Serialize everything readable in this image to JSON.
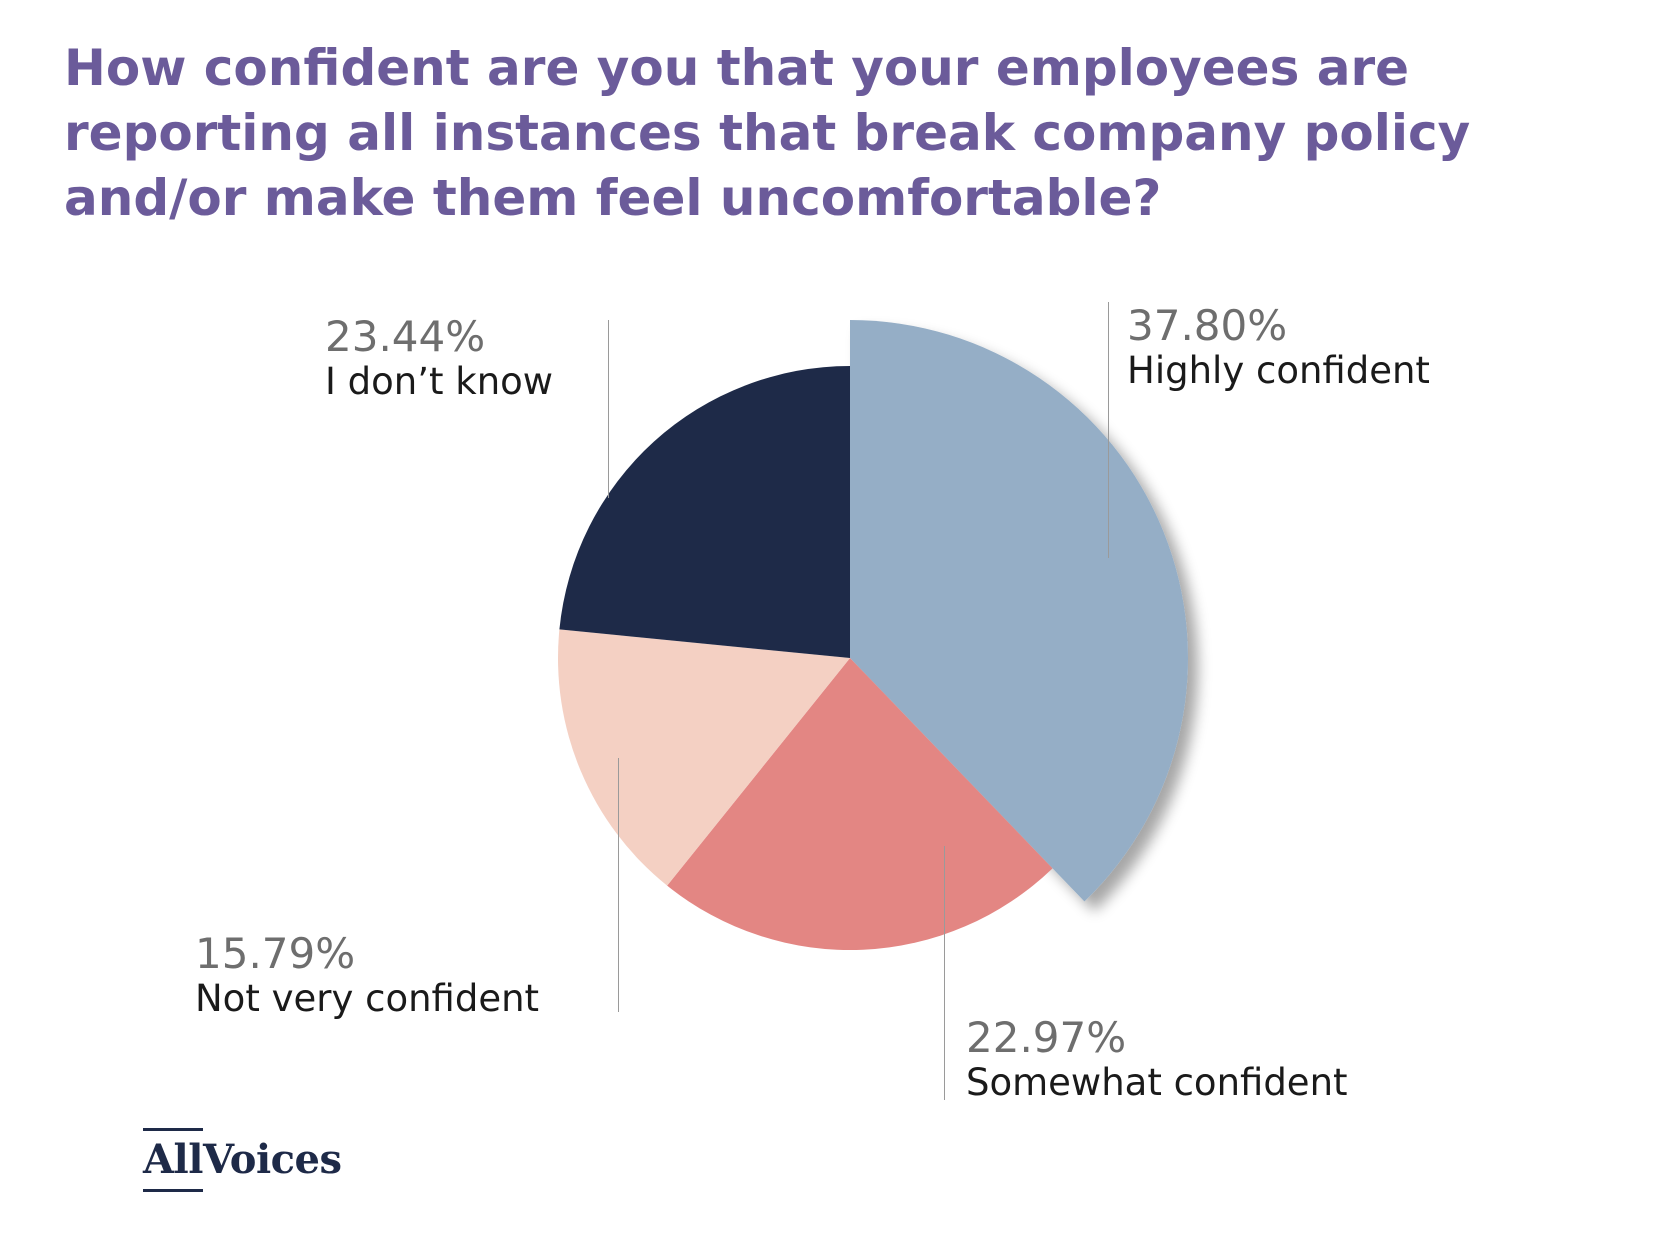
{
  "chart_data": {
    "type": "pie",
    "title": "How confident are you that your employees are reporting all instances that break company policy and/or make them feel uncomfortable?",
    "slices": [
      {
        "label": "Highly confident",
        "value": 37.8,
        "value_label": "37.80%",
        "color": "#95aec6",
        "exploded": true
      },
      {
        "label": "Somewhat confident",
        "value": 22.97,
        "value_label": "22.97%",
        "color": "#e38683"
      },
      {
        "label": "Not very confident",
        "value": 15.79,
        "value_label": "15.79%",
        "color": "#f4d0c3"
      },
      {
        "label": "I don’t know",
        "value": 23.44,
        "value_label": "23.44%",
        "color": "#1e2a48"
      }
    ],
    "start": "12 o'clock, clockwise",
    "legend": "none"
  },
  "brand": {
    "logo_part1": "All",
    "logo_part2": "Voices",
    "logo_color": "#1e2a48"
  },
  "colors": {
    "title": "#6b5b9a",
    "percent_text": "#6e6e6e",
    "label_text": "#1a1a1a"
  }
}
